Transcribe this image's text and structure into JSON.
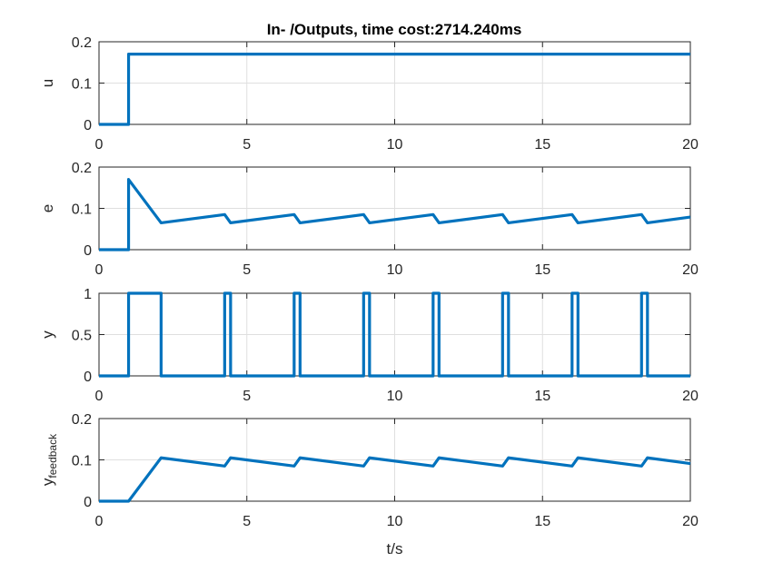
{
  "figure_title": "In- /Outputs, time cost:2714.240ms",
  "colors": {
    "series": "#0072BD",
    "axis": "#262626",
    "grid": "#DFDFDF"
  },
  "chart_data": [
    {
      "type": "line",
      "title": "In- /Outputs, time cost:2714.240ms",
      "xlabel": "",
      "ylabel": "u",
      "xlim": [
        0,
        20
      ],
      "ylim": [
        0,
        0.2
      ],
      "xticks": [
        0,
        5,
        10,
        15,
        20
      ],
      "yticks": [
        0,
        0.1,
        0.2
      ],
      "xtick_labels": [
        "0",
        "5",
        "10",
        "15",
        "20"
      ],
      "ytick_labels": [
        "0",
        "0.1",
        "0.2"
      ],
      "grid": true,
      "series": [
        {
          "x": [
            0,
            1,
            1,
            20
          ],
          "y": [
            0,
            0,
            0.17,
            0.17
          ]
        }
      ]
    },
    {
      "type": "line",
      "xlabel": "",
      "ylabel": "e",
      "xlim": [
        0,
        20
      ],
      "ylim": [
        0,
        0.2
      ],
      "xticks": [
        0,
        5,
        10,
        15,
        20
      ],
      "yticks": [
        0,
        0.1,
        0.2
      ],
      "xtick_labels": [
        "0",
        "5",
        "10",
        "15",
        "20"
      ],
      "ytick_labels": [
        "0",
        "0.1",
        "0.2"
      ],
      "grid": true,
      "series": [
        {
          "x": [
            0,
            1,
            1,
            2.1,
            4.25,
            4.45,
            6.6,
            6.8,
            8.95,
            9.15,
            11.3,
            11.5,
            13.65,
            13.85,
            16.0,
            16.2,
            18.35,
            18.55,
            20
          ],
          "y": [
            0,
            0,
            0.17,
            0.065,
            0.085,
            0.065,
            0.085,
            0.065,
            0.085,
            0.065,
            0.085,
            0.065,
            0.085,
            0.065,
            0.085,
            0.065,
            0.085,
            0.065,
            0.079
          ]
        }
      ]
    },
    {
      "type": "line",
      "xlabel": "",
      "ylabel": "y",
      "xlim": [
        0,
        20
      ],
      "ylim": [
        0,
        1
      ],
      "xticks": [
        0,
        5,
        10,
        15,
        20
      ],
      "yticks": [
        0,
        0.5,
        1
      ],
      "xtick_labels": [
        "0",
        "5",
        "10",
        "15",
        "20"
      ],
      "ytick_labels": [
        "0",
        "0.5",
        "1"
      ],
      "grid": true,
      "series": [
        {
          "x": [
            0,
            1,
            1,
            2.1,
            2.1,
            4.25,
            4.25,
            4.45,
            4.45,
            6.6,
            6.6,
            6.8,
            6.8,
            8.95,
            8.95,
            9.15,
            9.15,
            11.3,
            11.3,
            11.5,
            11.5,
            13.65,
            13.65,
            13.85,
            13.85,
            16.0,
            16.0,
            16.2,
            16.2,
            18.35,
            18.35,
            18.55,
            18.55,
            20
          ],
          "y": [
            0,
            0,
            1,
            1,
            0,
            0,
            1,
            1,
            0,
            0,
            1,
            1,
            0,
            0,
            1,
            1,
            0,
            0,
            1,
            1,
            0,
            0,
            1,
            1,
            0,
            0,
            1,
            1,
            0,
            0,
            1,
            1,
            0,
            0
          ]
        }
      ]
    },
    {
      "type": "line",
      "xlabel": "t/s",
      "ylabel": "y",
      "ylabel_sub": "feedback",
      "xlim": [
        0,
        20
      ],
      "ylim": [
        0,
        0.2
      ],
      "xticks": [
        0,
        5,
        10,
        15,
        20
      ],
      "yticks": [
        0,
        0.1,
        0.2
      ],
      "xtick_labels": [
        "0",
        "5",
        "10",
        "15",
        "20"
      ],
      "ytick_labels": [
        "0",
        "0.1",
        "0.2"
      ],
      "grid": true,
      "series": [
        {
          "x": [
            0,
            1,
            2.1,
            4.25,
            4.45,
            6.6,
            6.8,
            8.95,
            9.15,
            11.3,
            11.5,
            13.65,
            13.85,
            16.0,
            16.2,
            18.35,
            18.55,
            20
          ],
          "y": [
            0,
            0,
            0.105,
            0.085,
            0.105,
            0.085,
            0.105,
            0.085,
            0.105,
            0.085,
            0.105,
            0.085,
            0.105,
            0.085,
            0.105,
            0.085,
            0.105,
            0.091
          ]
        }
      ]
    }
  ]
}
